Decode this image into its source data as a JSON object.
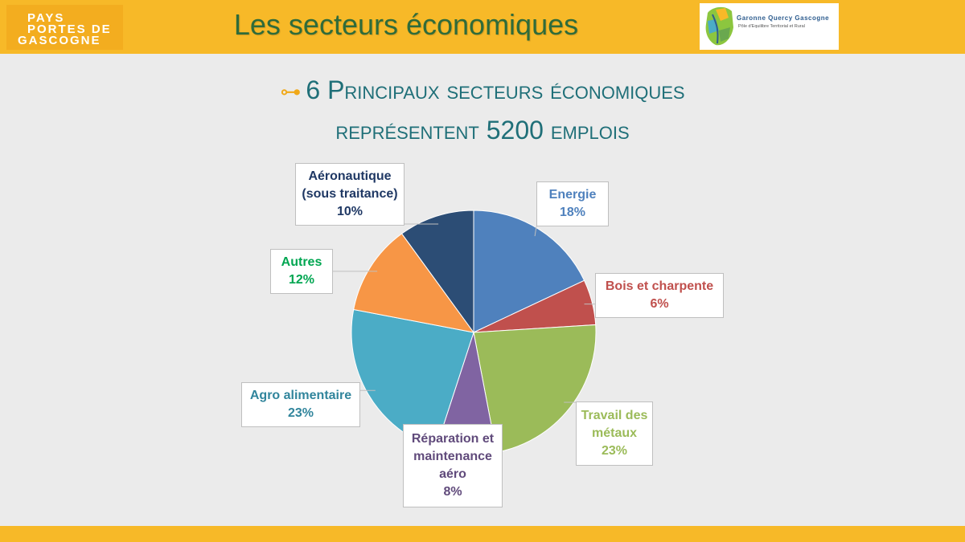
{
  "header": {
    "logo_left": {
      "line1": "PAYS",
      "line2": "PORTES DE",
      "line3": "GASCOGNE"
    },
    "title": "Les secteurs économiques",
    "logo_right": {
      "name": "Garonne Quercy Gascogne",
      "tagline": "Pôle d'Equilibre Territorial et Rural"
    }
  },
  "subtitle": {
    "line1": "6 Principaux secteurs économiques",
    "line2": "représentent 5200 emplois"
  },
  "colors": {
    "header_bar": "#f7b928",
    "title": "#2f6b3a",
    "subtitle": "#1f6f78",
    "key_icon": "#f0a818"
  },
  "chart_data": {
    "type": "pie",
    "slices": [
      {
        "name": "Energie",
        "label_lines": [
          "Energie"
        ],
        "value": 18,
        "display": "18%",
        "color": "#4f81bd",
        "label_color": "#4f81bd"
      },
      {
        "name": "Bois et charpente",
        "label_lines": [
          "Bois et charpente"
        ],
        "value": 6,
        "display": "6%",
        "color": "#c0504d",
        "label_color": "#c0504d"
      },
      {
        "name": "Travail des métaux",
        "label_lines": [
          "Travail des",
          "métaux"
        ],
        "value": 23,
        "display": "23%",
        "color": "#9bbb59",
        "label_color": "#9bbb59"
      },
      {
        "name": "Réparation et maintenance aéro",
        "label_lines": [
          "Réparation et",
          "maintenance",
          "aéro"
        ],
        "value": 8,
        "display": "8%",
        "color": "#8064a2",
        "label_color": "#604a7b"
      },
      {
        "name": "Agro alimentaire",
        "label_lines": [
          "Agro alimentaire"
        ],
        "value": 23,
        "display": "23%",
        "color": "#4bacc6",
        "label_color": "#31859c"
      },
      {
        "name": "Autres",
        "label_lines": [
          "Autres"
        ],
        "value": 12,
        "display": "12%",
        "color": "#f79646",
        "label_color": "#00a651"
      },
      {
        "name": "Aéronautique (sous traitance)",
        "label_lines": [
          "Aéronautique",
          "(sous traitance)"
        ],
        "value": 10,
        "display": "10%",
        "color": "#2c4d75",
        "label_color": "#1f3864"
      }
    ]
  }
}
